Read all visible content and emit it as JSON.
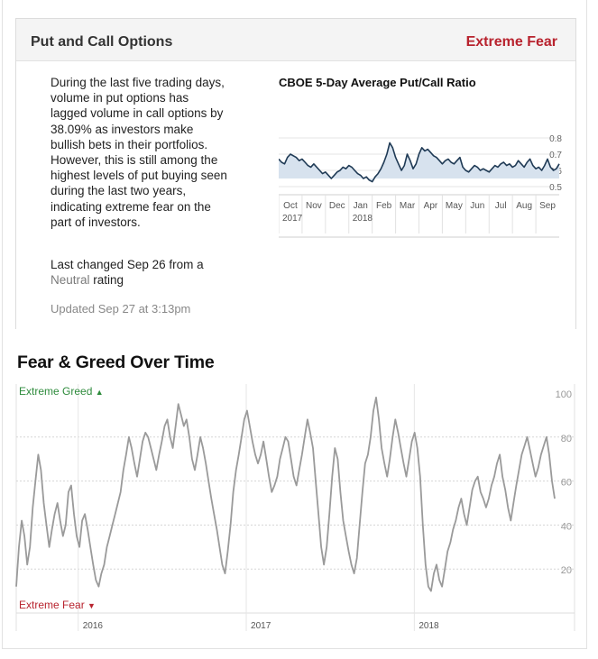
{
  "indicator": {
    "title": "Put and Call Options",
    "rating": "Extreme Fear",
    "description": "During the last five trading days, volume in put options has lagged volume in call options by 38.09% as investors make bullish bets in their portfolios. However, this is still among the highest levels of put buying seen during the last two years, indicating extreme fear on the part of investors.",
    "last_changed_prefix": "Last changed Sep 26 from a",
    "last_changed_rating": "Neutral",
    "last_changed_suffix": "rating",
    "updated": "Updated Sep 27 at 3:13pm"
  },
  "colors": {
    "extreme_fear": "#b8232e",
    "extreme_greed": "#2e8b3c",
    "mini_line": "#1f3a55",
    "mini_fill": "#d7e2ee",
    "fg_line": "#9a9a9a"
  },
  "chart_data": [
    {
      "type": "area",
      "title": "CBOE 5-Day Average Put/Call Ratio",
      "ylim": [
        0.45,
        0.85
      ],
      "yticks": [
        0.8,
        0.7,
        0.6,
        0.5
      ],
      "ytick_labels": [
        "0.8",
        "0.7",
        "0.6",
        "0.5"
      ],
      "baseline_value": 0.55,
      "month_labels": [
        "Oct",
        "Nov",
        "Dec",
        "Jan",
        "Feb",
        "Mar",
        "Apr",
        "May",
        "Jun",
        "Jul",
        "Aug",
        "Sep"
      ],
      "year_labels": [
        {
          "text": "2017",
          "month": "Oct"
        },
        {
          "text": "2018",
          "month": "Jan"
        }
      ],
      "values": [
        0.67,
        0.65,
        0.64,
        0.68,
        0.7,
        0.69,
        0.68,
        0.66,
        0.67,
        0.65,
        0.63,
        0.62,
        0.64,
        0.62,
        0.6,
        0.58,
        0.59,
        0.57,
        0.55,
        0.57,
        0.59,
        0.6,
        0.62,
        0.61,
        0.63,
        0.62,
        0.6,
        0.58,
        0.57,
        0.55,
        0.56,
        0.54,
        0.53,
        0.56,
        0.58,
        0.61,
        0.65,
        0.7,
        0.77,
        0.74,
        0.68,
        0.64,
        0.6,
        0.63,
        0.7,
        0.66,
        0.61,
        0.64,
        0.7,
        0.74,
        0.72,
        0.73,
        0.71,
        0.69,
        0.68,
        0.66,
        0.64,
        0.66,
        0.67,
        0.65,
        0.64,
        0.66,
        0.68,
        0.62,
        0.6,
        0.59,
        0.61,
        0.63,
        0.62,
        0.6,
        0.61,
        0.6,
        0.59,
        0.61,
        0.63,
        0.62,
        0.64,
        0.65,
        0.63,
        0.64,
        0.62,
        0.63,
        0.66,
        0.64,
        0.62,
        0.65,
        0.67,
        0.63,
        0.61,
        0.62,
        0.6,
        0.63,
        0.67,
        0.62,
        0.6,
        0.61,
        0.64
      ]
    },
    {
      "type": "line",
      "title": "Fear & Greed Over Time",
      "ylim": [
        0,
        100
      ],
      "yticks": [
        100,
        80,
        60,
        40,
        20
      ],
      "ytick_labels": [
        "100",
        "80",
        "60",
        "40",
        "20"
      ],
      "top_label": "Extreme Greed",
      "bottom_label": "Extreme Fear",
      "x_labels": [
        {
          "text": "2016",
          "t": 0.111
        },
        {
          "text": "2017",
          "t": 0.412
        },
        {
          "text": "2018",
          "t": 0.713
        }
      ],
      "values": [
        12,
        30,
        42,
        35,
        22,
        30,
        48,
        60,
        72,
        65,
        50,
        40,
        30,
        38,
        45,
        50,
        42,
        35,
        40,
        55,
        58,
        45,
        35,
        30,
        42,
        45,
        38,
        30,
        22,
        15,
        12,
        18,
        22,
        30,
        35,
        40,
        45,
        50,
        55,
        65,
        72,
        80,
        75,
        68,
        62,
        70,
        78,
        82,
        80,
        75,
        70,
        65,
        72,
        78,
        85,
        88,
        80,
        75,
        85,
        95,
        90,
        85,
        88,
        80,
        70,
        65,
        72,
        80,
        75,
        68,
        60,
        52,
        45,
        38,
        30,
        22,
        18,
        28,
        40,
        55,
        65,
        72,
        80,
        88,
        92,
        85,
        78,
        72,
        68,
        72,
        78,
        70,
        62,
        55,
        58,
        62,
        70,
        75,
        80,
        78,
        70,
        62,
        58,
        65,
        72,
        80,
        88,
        82,
        75,
        60,
        45,
        30,
        22,
        30,
        45,
        62,
        75,
        70,
        55,
        42,
        35,
        28,
        22,
        18,
        25,
        40,
        55,
        68,
        72,
        80,
        92,
        98,
        88,
        75,
        68,
        62,
        70,
        80,
        88,
        82,
        75,
        68,
        62,
        70,
        78,
        82,
        75,
        62,
        40,
        22,
        12,
        10,
        18,
        22,
        15,
        12,
        20,
        28,
        32,
        38,
        42,
        48,
        52,
        45,
        40,
        48,
        56,
        60,
        62,
        55,
        52,
        48,
        52,
        58,
        62,
        68,
        72,
        62,
        56,
        48,
        42,
        50,
        58,
        65,
        72,
        76,
        80,
        74,
        68,
        62,
        66,
        72,
        76,
        80,
        72,
        60,
        52
      ]
    }
  ]
}
